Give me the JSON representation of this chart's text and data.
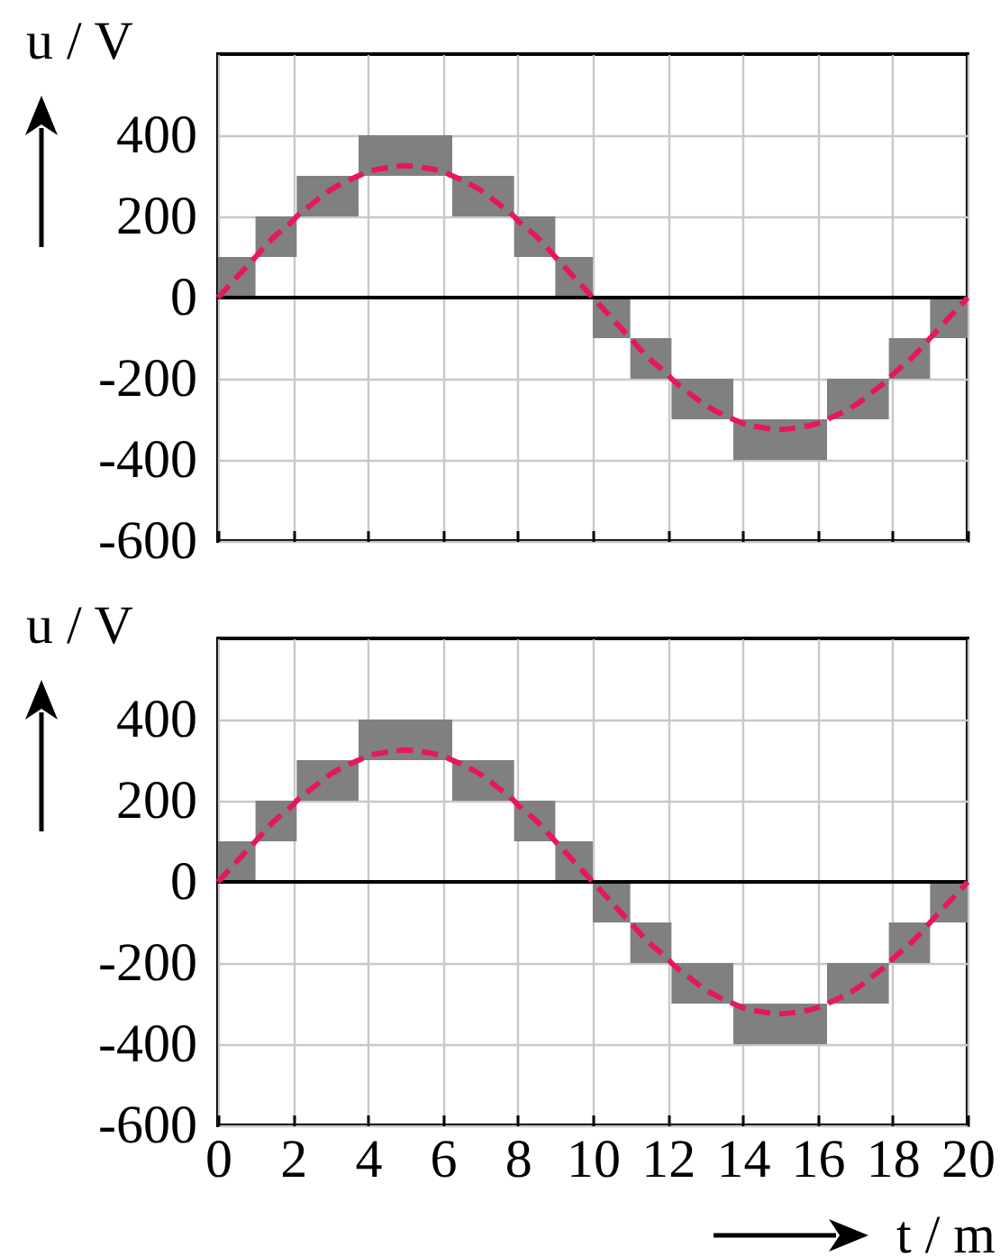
{
  "chart_data": [
    {
      "type": "line",
      "ylabel": "u / V",
      "xlim": [
        0,
        20
      ],
      "xticks": [
        0,
        2,
        4,
        6,
        8,
        10,
        12,
        14,
        16,
        18,
        20
      ],
      "ylim": [
        -600,
        600
      ],
      "yticks": [
        -600,
        -400,
        -200,
        0,
        200,
        400
      ],
      "grid": true,
      "tick_labels": "y",
      "line_style": "dashed",
      "ref_lines": [
        {
          "axis": "y",
          "value": 0,
          "color": "#000000"
        }
      ],
      "series": [
        {
          "color": "#e5185e",
          "x": [
            0,
            0.5,
            1,
            1.5,
            2,
            2.1,
            2.5,
            3,
            3.5,
            3.75,
            4,
            4.5,
            5,
            5.5,
            6,
            6.25,
            6.5,
            7,
            7.5,
            7.9,
            8,
            8.5,
            9,
            9.5,
            10,
            10.5,
            11,
            11.5,
            12,
            12.1,
            12.5,
            13,
            13.5,
            13.75,
            14,
            14.5,
            15,
            15.5,
            16,
            16.25,
            16.5,
            17,
            17.5,
            17.9,
            18,
            18.5,
            19,
            19.5,
            20
          ],
          "values": [
            0,
            50,
            100,
            150,
            190,
            200,
            230,
            265,
            290,
            300,
            310,
            320,
            325,
            320,
            310,
            300,
            290,
            265,
            230,
            200,
            190,
            150,
            100,
            50,
            0,
            -50,
            -100,
            -150,
            -190,
            -200,
            -230,
            -265,
            -290,
            -300,
            -310,
            -320,
            -325,
            -320,
            -310,
            -300,
            -290,
            -265,
            -230,
            -200,
            -190,
            -150,
            -100,
            -50,
            0
          ],
          "lower": [
            0,
            0,
            100,
            100,
            100,
            200,
            200,
            200,
            200,
            300,
            300,
            300,
            300,
            300,
            300,
            200,
            200,
            200,
            200,
            100,
            100,
            100,
            0,
            0,
            -100,
            -100,
            -200,
            -200,
            -200,
            -300,
            -300,
            -300,
            -300,
            -400,
            -400,
            -400,
            -400,
            -400,
            -400,
            -300,
            -300,
            -300,
            -300,
            -200,
            -200,
            -200,
            -100,
            -100,
            -100
          ],
          "upper": [
            100,
            100,
            200,
            200,
            200,
            300,
            300,
            300,
            300,
            400,
            400,
            400,
            400,
            400,
            400,
            300,
            300,
            300,
            300,
            200,
            200,
            200,
            100,
            100,
            0,
            0,
            -100,
            -100,
            -100,
            -200,
            -200,
            -200,
            -200,
            -300,
            -300,
            -300,
            -300,
            -300,
            -300,
            -200,
            -200,
            -200,
            -200,
            -100,
            -100,
            -100,
            0,
            0,
            0
          ]
        }
      ]
    },
    {
      "type": "line",
      "xlabel": "t / m",
      "ylabel": "u / V",
      "xlim": [
        0,
        20
      ],
      "xticks": [
        0,
        2,
        4,
        6,
        8,
        10,
        12,
        14,
        16,
        18,
        20
      ],
      "ylim": [
        -600,
        600
      ],
      "yticks": [
        -600,
        -400,
        -200,
        0,
        200,
        400
      ],
      "grid": true,
      "line_style": "dashed",
      "ref_lines": [
        {
          "axis": "y",
          "value": 0,
          "color": "#000000"
        }
      ],
      "series": [
        {
          "color": "#e5185e",
          "x": [
            0,
            0.5,
            1,
            1.5,
            2,
            2.1,
            2.5,
            3,
            3.5,
            3.75,
            4,
            4.5,
            5,
            5.5,
            6,
            6.25,
            6.5,
            7,
            7.5,
            7.9,
            8,
            8.5,
            9,
            9.5,
            10,
            10.5,
            11,
            11.5,
            12,
            12.1,
            12.5,
            13,
            13.5,
            13.75,
            14,
            14.5,
            15,
            15.5,
            16,
            16.25,
            16.5,
            17,
            17.5,
            17.9,
            18,
            18.5,
            19,
            19.5,
            20
          ],
          "values": [
            0,
            50,
            100,
            150,
            190,
            200,
            230,
            265,
            290,
            300,
            310,
            320,
            325,
            320,
            310,
            300,
            290,
            265,
            230,
            200,
            190,
            150,
            100,
            50,
            0,
            -50,
            -100,
            -150,
            -190,
            -200,
            -230,
            -265,
            -290,
            -300,
            -310,
            -320,
            -325,
            -320,
            -310,
            -300,
            -290,
            -265,
            -230,
            -200,
            -190,
            -150,
            -100,
            -50,
            0
          ],
          "lower": [
            0,
            0,
            100,
            100,
            100,
            200,
            200,
            200,
            200,
            300,
            300,
            300,
            300,
            300,
            300,
            200,
            200,
            200,
            200,
            100,
            100,
            100,
            0,
            0,
            -100,
            -100,
            -200,
            -200,
            -200,
            -300,
            -300,
            -300,
            -300,
            -400,
            -400,
            -400,
            -400,
            -400,
            -400,
            -300,
            -300,
            -300,
            -300,
            -200,
            -200,
            -200,
            -100,
            -100,
            -100
          ],
          "upper": [
            100,
            100,
            200,
            200,
            200,
            300,
            300,
            300,
            300,
            400,
            400,
            400,
            400,
            400,
            400,
            300,
            300,
            300,
            300,
            200,
            200,
            200,
            100,
            100,
            0,
            0,
            -100,
            -100,
            -100,
            -200,
            -200,
            -200,
            -200,
            -300,
            -300,
            -300,
            -300,
            -300,
            -300,
            -200,
            -200,
            -200,
            -200,
            -100,
            -100,
            -100,
            0,
            0,
            0
          ]
        }
      ]
    }
  ]
}
